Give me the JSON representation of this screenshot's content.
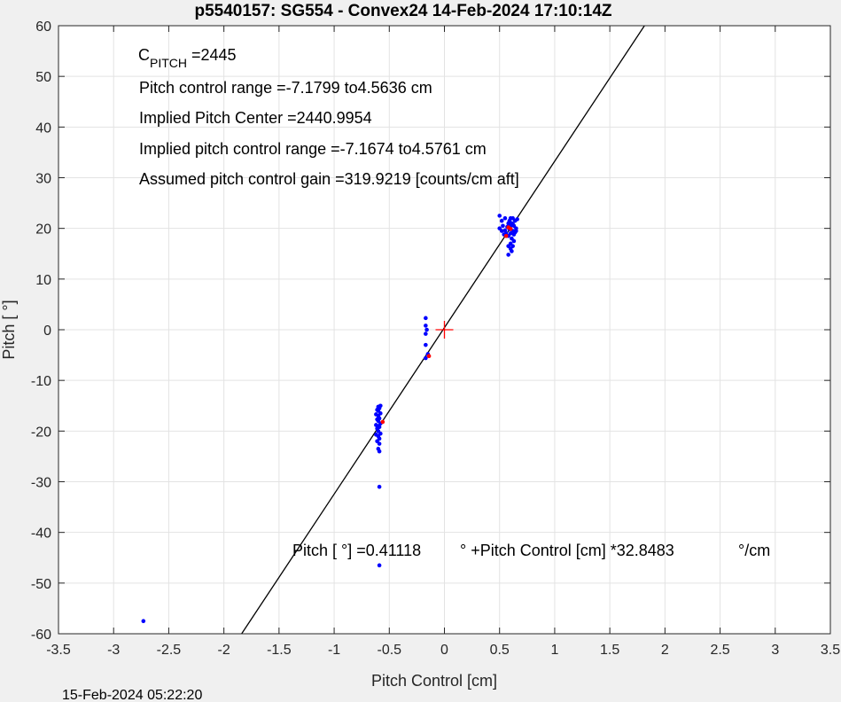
{
  "chart_data": {
    "type": "scatter",
    "title": "p5540157: SG554 - Convex24 14-Feb-2024 17:10:14Z",
    "xlabel": "Pitch Control [cm]",
    "ylabel": "Pitch [  °]",
    "xlim": [
      -3.5,
      3.5
    ],
    "ylim": [
      -60,
      60
    ],
    "xticks": [
      "-3.5",
      "-3",
      "-2.5",
      "-2",
      "-1.5",
      "-1",
      "-0.5",
      "0",
      "0.5",
      "1",
      "1.5",
      "2",
      "2.5",
      "3",
      "3.5"
    ],
    "yticks": [
      "60",
      "50",
      "40",
      "30",
      "20",
      "10",
      "0",
      "-10",
      "-20",
      "-30",
      "-40",
      "-50",
      "-60"
    ],
    "grid": true,
    "annotations": {
      "c_pitch_main": "C",
      "c_pitch_sub": "PITCH",
      "c_pitch_value": " =2445",
      "range": "Pitch control range =-7.1799 to4.5636 cm",
      "center": "Implied Pitch Center =2440.9954",
      "implied_range": "Implied pitch control range =-7.1674 to4.5761 cm",
      "gain": "Assumed pitch control gain =319.9219 [counts/cm aft]",
      "fit_a": "Pitch [  °] =0.41118",
      "fit_b": "° +Pitch Control [cm] *32.8483",
      "fit_c": "°/cm"
    },
    "fit_line": {
      "intercept": 0.41118,
      "slope": 32.8483,
      "color": "#000000"
    },
    "center_marker": {
      "x": 0,
      "y": 0,
      "color": "#ff0000"
    },
    "series": [
      {
        "color": "#0000ff",
        "points": [
          [
            -2.73,
            -57.5
          ],
          [
            -0.59,
            -46.5
          ],
          [
            -0.59,
            -31
          ],
          [
            -0.59,
            -24
          ],
          [
            -0.6,
            -23.5
          ],
          [
            -0.59,
            -22.5
          ],
          [
            -0.61,
            -22
          ],
          [
            -0.59,
            -21.5
          ],
          [
            -0.6,
            -21
          ],
          [
            -0.62,
            -20.7
          ],
          [
            -0.58,
            -20.5
          ],
          [
            -0.6,
            -20
          ],
          [
            -0.61,
            -19.5
          ],
          [
            -0.59,
            -19.2
          ],
          [
            -0.6,
            -19
          ],
          [
            -0.62,
            -18.8
          ],
          [
            -0.58,
            -18.5
          ],
          [
            -0.6,
            -18
          ],
          [
            -0.61,
            -17.7
          ],
          [
            -0.59,
            -17.5
          ],
          [
            -0.6,
            -17
          ],
          [
            -0.62,
            -16.7
          ],
          [
            -0.58,
            -16.5
          ],
          [
            -0.6,
            -16
          ],
          [
            -0.61,
            -15.8
          ],
          [
            -0.59,
            -15.5
          ],
          [
            -0.6,
            -15.2
          ],
          [
            -0.58,
            -15
          ],
          [
            -0.17,
            2.3
          ],
          [
            -0.17,
            0.8
          ],
          [
            -0.16,
            0
          ],
          [
            -0.17,
            -0.8
          ],
          [
            -0.17,
            -3
          ],
          [
            -0.15,
            -4.8
          ],
          [
            -0.17,
            -5.6
          ],
          [
            0.5,
            22.5
          ],
          [
            0.52,
            21.5
          ],
          [
            0.55,
            22
          ],
          [
            0.53,
            20.5
          ],
          [
            0.5,
            20
          ],
          [
            0.52,
            19.5
          ],
          [
            0.56,
            19
          ],
          [
            0.54,
            18.8
          ],
          [
            0.58,
            21
          ],
          [
            0.6,
            22
          ],
          [
            0.6,
            20.5
          ],
          [
            0.62,
            22
          ],
          [
            0.61,
            21
          ],
          [
            0.63,
            20.5
          ],
          [
            0.59,
            19.8
          ],
          [
            0.62,
            19.5
          ],
          [
            0.64,
            19.2
          ],
          [
            0.6,
            19
          ],
          [
            0.58,
            18.5
          ],
          [
            0.63,
            18.8
          ],
          [
            0.65,
            19.5
          ],
          [
            0.61,
            18
          ],
          [
            0.63,
            17.5
          ],
          [
            0.6,
            17
          ],
          [
            0.62,
            16.5
          ],
          [
            0.58,
            16.5
          ],
          [
            0.6,
            16
          ],
          [
            0.61,
            15.5
          ],
          [
            0.58,
            14.8
          ],
          [
            0.64,
            21.5
          ],
          [
            0.65,
            20
          ],
          [
            0.57,
            20.3
          ],
          [
            0.55,
            19.6
          ],
          [
            0.66,
            21.8
          ],
          [
            0.62,
            20.8
          ],
          [
            0.59,
            21.5
          ]
        ]
      },
      {
        "color": "#ff0000",
        "points": [
          [
            -0.56,
            -18.2
          ],
          [
            -0.14,
            -5.2
          ],
          [
            0.56,
            18.5
          ],
          [
            0.58,
            20.2
          ],
          [
            0.6,
            19.9
          ]
        ]
      }
    ]
  },
  "footer_timestamp": "15-Feb-2024 05:22:20"
}
